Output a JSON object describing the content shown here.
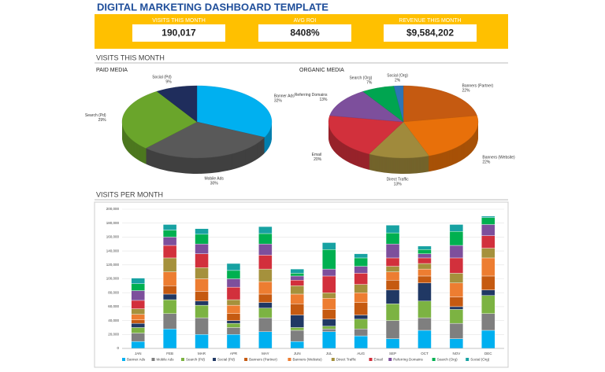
{
  "header": {
    "title": "DIGITAL MARKETING DASHBOARD TEMPLATE"
  },
  "kpis": [
    {
      "label": "VISITS THIS MONTH",
      "value": "190,017"
    },
    {
      "label": "AVG ROI",
      "value": "8408%"
    },
    {
      "label": "REVENUE THIS MONTH",
      "value": "$9,584,202"
    }
  ],
  "sections": {
    "visits_this_month": "VISITS THIS MONTH",
    "visits_per_month": "VISITS PER MONTH"
  },
  "chart_data": [
    {
      "type": "pie",
      "title": "PAID MEDIA",
      "categories": [
        "Banner Ads",
        "Mobile Ads",
        "Search (Pd)",
        "Social (Pd)"
      ],
      "values": [
        32,
        30,
        29,
        9
      ],
      "value_labels": [
        "32%",
        "30%",
        "29%",
        "9%"
      ],
      "colors": [
        "#00b0f0",
        "#595959",
        "#6aa52b",
        "#1f2d5c"
      ]
    },
    {
      "type": "pie",
      "title": "ORGANIC MEDIA",
      "categories": [
        "Banners (Partner)",
        "Banners (Website)",
        "Direct Traffic",
        "Email",
        "Referring Domains",
        "Search (Org)",
        "Social (Org)"
      ],
      "values": [
        22,
        22,
        13,
        20,
        13,
        7,
        2
      ],
      "value_labels": [
        "22%",
        "22%",
        "13%",
        "20%",
        "13%",
        "7%",
        "2%"
      ],
      "colors": [
        "#c55a11",
        "#e8700a",
        "#a08a3c",
        "#d2303c",
        "#7d4f9c",
        "#00a550",
        "#2e75b6"
      ]
    },
    {
      "type": "bar",
      "stacked": true,
      "grid": true,
      "categories": [
        "JAN",
        "FEB",
        "MAR",
        "APR",
        "MAY",
        "JUN",
        "JUL",
        "AUG",
        "SEP",
        "OCT",
        "NOV",
        "DEC"
      ],
      "ylim": [
        0,
        200000
      ],
      "yticks": [
        0,
        {
          "value": 20000,
          "label": "20,000"
        },
        {
          "value": 40000,
          "label": "40,000"
        },
        {
          "value": 60000,
          "label": "60,000"
        },
        {
          "value": 80000,
          "label": "80,000"
        },
        {
          "value": 100000,
          "label": "100,000"
        },
        {
          "value": 120000,
          "label": "120,000"
        },
        {
          "value": 140000,
          "label": "140,000"
        },
        {
          "value": 160000,
          "label": "160,000"
        },
        {
          "value": 180000,
          "label": "180,000"
        },
        {
          "value": 200000,
          "label": "200,000"
        }
      ],
      "series": [
        {
          "name": "Banner Ads",
          "color": "#00b0f0",
          "values": [
            10000,
            28000,
            20000,
            20000,
            24000,
            10000,
            24000,
            18000,
            14000,
            26000,
            14000,
            26000
          ]
        },
        {
          "name": "Mobile Ads",
          "color": "#7f7f7f",
          "values": [
            12000,
            22000,
            24000,
            10000,
            20000,
            16000,
            4000,
            10000,
            26000,
            18000,
            22000,
            24000
          ]
        },
        {
          "name": "Search (Pd)",
          "color": "#7cb342",
          "values": [
            8000,
            20000,
            18000,
            6000,
            14000,
            4000,
            4000,
            14000,
            24000,
            24000,
            20000,
            26000
          ]
        },
        {
          "name": "Social (Pd)",
          "color": "#203864",
          "values": [
            6000,
            8000,
            6000,
            4000,
            8000,
            18000,
            10000,
            6000,
            20000,
            26000,
            4000,
            8000
          ]
        },
        {
          "name": "Banners (Partner)",
          "color": "#c55a11",
          "values": [
            5000,
            12000,
            14000,
            10000,
            12000,
            16000,
            14000,
            18000,
            14000,
            10000,
            14000,
            20000
          ]
        },
        {
          "name": "Banners (Website)",
          "color": "#ed7d31",
          "values": [
            8000,
            20000,
            18000,
            12000,
            18000,
            14000,
            16000,
            14000,
            12000,
            10000,
            20000,
            26000
          ]
        },
        {
          "name": "Direct Traffic",
          "color": "#a5913c",
          "values": [
            8000,
            20000,
            16000,
            8000,
            18000,
            12000,
            8000,
            12000,
            8000,
            8000,
            14000,
            14000
          ]
        },
        {
          "name": "Email",
          "color": "#d2303c",
          "values": [
            12000,
            18000,
            20000,
            18000,
            20000,
            8000,
            24000,
            16000,
            12000,
            8000,
            22000,
            18000
          ]
        },
        {
          "name": "Referring Domains",
          "color": "#7d4f9c",
          "values": [
            14000,
            12000,
            14000,
            12000,
            16000,
            6000,
            10000,
            10000,
            20000,
            6000,
            18000,
            16000
          ]
        },
        {
          "name": "Search (Org)",
          "color": "#00b050",
          "values": [
            10000,
            10000,
            14000,
            12000,
            15000,
            4000,
            28000,
            12000,
            16000,
            6000,
            20000,
            10000
          ]
        },
        {
          "name": "Social (Org)",
          "color": "#17a2a2",
          "values": [
            8000,
            8000,
            8000,
            10000,
            10000,
            6000,
            10000,
            6000,
            11000,
            5000,
            10000,
            2000
          ]
        }
      ]
    }
  ]
}
